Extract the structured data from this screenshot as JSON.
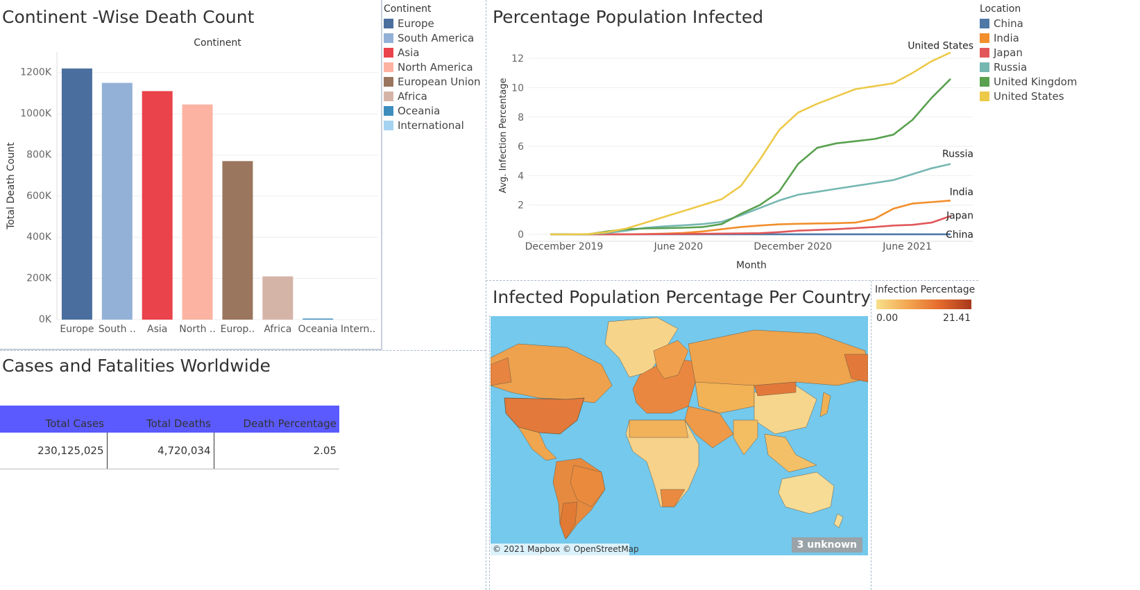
{
  "bar_panel": {
    "title": "Continent -Wise Death Count",
    "legend_title": "Continent",
    "legend": [
      {
        "label": "Europe",
        "color": "#4a6f9e"
      },
      {
        "label": "South America",
        "color": "#93b1d7"
      },
      {
        "label": "Asia",
        "color": "#ea434b"
      },
      {
        "label": "North America",
        "color": "#fcb3a2"
      },
      {
        "label": "European Union",
        "color": "#99765d"
      },
      {
        "label": "Africa",
        "color": "#d5b4a8"
      },
      {
        "label": "Oceania",
        "color": "#3d8ebd"
      },
      {
        "label": "International",
        "color": "#a5d3f1"
      }
    ]
  },
  "line_panel": {
    "title": "Percentage Population Infected",
    "legend_title": "Location",
    "legend": [
      {
        "label": "China",
        "color": "#4e79a7"
      },
      {
        "label": "India",
        "color": "#f28e2b"
      },
      {
        "label": "Japan",
        "color": "#e15759"
      },
      {
        "label": "Russia",
        "color": "#76b7b2"
      },
      {
        "label": "United Kingdom",
        "color": "#59a14f"
      },
      {
        "label": "United States",
        "color": "#edc948"
      }
    ]
  },
  "table_panel": {
    "title": "Cases and Fatalities Worldwide",
    "headers": [
      "Total Cases",
      "Total Deaths",
      "Death Percentage"
    ],
    "row": [
      "230,125,025",
      "4,720,034",
      "2.05"
    ]
  },
  "map_panel": {
    "title": "Infected Population Percentage Per Country",
    "legend_title": "Infection Percentage",
    "legend_min": "0.00",
    "legend_max": "21.41",
    "attribution": "© 2021 Mapbox © OpenStreetMap",
    "unknown_badge": "3 unknown",
    "ocean_color": "#74c9ec"
  },
  "chart_data": [
    {
      "type": "bar",
      "title": "Continent",
      "ylabel": "Total Death Count",
      "xlabel": "",
      "categories": [
        "Europe",
        "South ..",
        "Asia",
        "North ..",
        "Europ..",
        "Africa",
        "Oceania",
        "Intern.."
      ],
      "values": [
        1220000,
        1150000,
        1110000,
        1045000,
        770000,
        210000,
        2000,
        0
      ],
      "ylim": [
        0,
        1300000
      ],
      "yticks": [
        0,
        200000,
        400000,
        600000,
        800000,
        1000000,
        1200000
      ],
      "ytick_labels": [
        "0K",
        "200K",
        "400K",
        "600K",
        "800K",
        "1000K",
        "1200K"
      ],
      "colors": [
        "#4a6f9e",
        "#93b1d7",
        "#ea434b",
        "#fcb3a2",
        "#99765d",
        "#d5b4a8",
        "#3d8ebd",
        "#a5d3f1"
      ]
    },
    {
      "type": "line",
      "xlabel": "Month",
      "ylabel": "Avg. Infection Percentage",
      "ylim": [
        0,
        13
      ],
      "yticks": [
        0,
        2,
        4,
        6,
        8,
        10,
        12
      ],
      "x_tick_labels": [
        {
          "label": "December 2019",
          "index": 0
        },
        {
          "label": "June 2020",
          "index": 6
        },
        {
          "label": "December 2020",
          "index": 12
        },
        {
          "label": "June 2021",
          "index": 18
        }
      ],
      "n_points": 22,
      "series": [
        {
          "name": "China",
          "color": "#4e79a7",
          "label": "China",
          "values": [
            0,
            0.001,
            0.002,
            0.003,
            0.003,
            0.003,
            0.003,
            0.003,
            0.003,
            0.003,
            0.003,
            0.003,
            0.003,
            0.003,
            0.003,
            0.003,
            0.003,
            0.003,
            0.003,
            0.003,
            0.003,
            0.003
          ]
        },
        {
          "name": "India",
          "color": "#f28e2b",
          "label": "India",
          "values": [
            0,
            0,
            0,
            0.001,
            0.005,
            0.02,
            0.05,
            0.1,
            0.2,
            0.35,
            0.5,
            0.6,
            0.68,
            0.72,
            0.74,
            0.76,
            0.8,
            1.05,
            1.75,
            2.1,
            2.2,
            2.3
          ]
        },
        {
          "name": "Japan",
          "color": "#e15759",
          "label": "Japan",
          "values": [
            0,
            0,
            0,
            0.001,
            0.005,
            0.01,
            0.02,
            0.03,
            0.04,
            0.05,
            0.06,
            0.08,
            0.15,
            0.25,
            0.3,
            0.35,
            0.42,
            0.5,
            0.6,
            0.65,
            0.8,
            1.25
          ]
        },
        {
          "name": "Russia",
          "color": "#76b7b2",
          "label": "Russia",
          "values": [
            0,
            0,
            0.01,
            0.1,
            0.25,
            0.45,
            0.55,
            0.62,
            0.7,
            0.85,
            1.3,
            1.8,
            2.3,
            2.7,
            2.9,
            3.1,
            3.3,
            3.5,
            3.7,
            4.1,
            4.5,
            4.8
          ]
        },
        {
          "name": "United Kingdom",
          "color": "#59a14f",
          "label": "",
          "values": [
            0,
            0,
            0.01,
            0.2,
            0.35,
            0.4,
            0.42,
            0.45,
            0.5,
            0.7,
            1.4,
            2.0,
            2.9,
            4.8,
            5.9,
            6.2,
            6.35,
            6.5,
            6.8,
            7.8,
            9.3,
            10.6
          ]
        },
        {
          "name": "United States",
          "color": "#edc948",
          "label": "United States",
          "values": [
            0,
            0,
            0.02,
            0.15,
            0.4,
            0.8,
            1.2,
            1.6,
            2.0,
            2.4,
            3.3,
            5.1,
            7.1,
            8.3,
            8.9,
            9.4,
            9.9,
            10.1,
            10.3,
            11.0,
            11.8,
            12.4
          ]
        }
      ]
    }
  ]
}
